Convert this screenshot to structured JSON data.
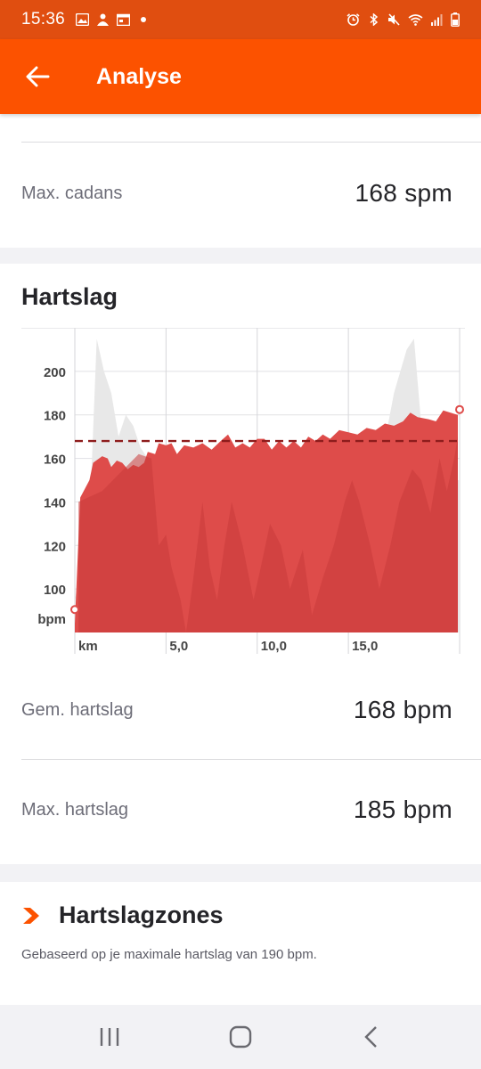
{
  "status_bar": {
    "time": "15:36",
    "left_icons": [
      "image-icon",
      "person-icon",
      "calendar-icon",
      "dot-icon"
    ],
    "right_icons": [
      "alarm-icon",
      "bluetooth-icon",
      "mute-icon",
      "wifi-icon",
      "signal-icon",
      "battery-icon"
    ]
  },
  "app_bar": {
    "title": "Analyse",
    "back_icon": "arrow-left-icon"
  },
  "cadence": {
    "label": "Max. cadans",
    "value": "168 spm"
  },
  "heart_rate": {
    "title": "Hartslag",
    "avg_label": "Gem. hartslag",
    "avg_value": "168 bpm",
    "max_label": "Max. hartslag",
    "max_value": "185 bpm"
  },
  "zones": {
    "title": "Hartslagzones",
    "subtitle": "Gebaseerd op je maximale hartslag van 190 bpm.",
    "icon": "chevron-right-icon"
  },
  "nav_bar": {
    "icons": [
      "recent-apps-icon",
      "home-icon",
      "back-icon"
    ]
  },
  "colors": {
    "accent": "#fc5200",
    "status_bar": "#e04e10",
    "hr_area": "#de4c4a",
    "hr_dark": "#c93a3a",
    "avg_line": "#8e1c1c",
    "grey_area": "#e8e8e8"
  },
  "chart_data": {
    "type": "area",
    "xlabel": "km",
    "ylabel": "bpm",
    "x_ticks": [
      "5,0",
      "10,0",
      "15,0"
    ],
    "x_range": [
      0,
      21.1
    ],
    "y_ticks": [
      100,
      120,
      140,
      160,
      180,
      200
    ],
    "y_range": [
      80,
      220
    ],
    "average": 168,
    "grid": true,
    "series": [
      {
        "values": [
          [
            0,
            84
          ],
          [
            0.3,
            142
          ],
          [
            0.8,
            150
          ],
          [
            1.0,
            158
          ],
          [
            1.5,
            161
          ],
          [
            1.8,
            160
          ],
          [
            2.0,
            156
          ],
          [
            2.3,
            159
          ],
          [
            2.6,
            158
          ],
          [
            2.9,
            155
          ],
          [
            3.2,
            157
          ],
          [
            3.5,
            156
          ],
          [
            3.8,
            158
          ],
          [
            4.0,
            163
          ],
          [
            4.4,
            162
          ],
          [
            4.6,
            167
          ],
          [
            5.0,
            166
          ],
          [
            5.3,
            167
          ],
          [
            5.6,
            162
          ],
          [
            6.0,
            166
          ],
          [
            6.5,
            165
          ],
          [
            7.0,
            167
          ],
          [
            7.5,
            164
          ],
          [
            8.0,
            168
          ],
          [
            8.4,
            171
          ],
          [
            8.8,
            165
          ],
          [
            9.2,
            167
          ],
          [
            9.6,
            165
          ],
          [
            10.0,
            169
          ],
          [
            10.4,
            169
          ],
          [
            10.8,
            164
          ],
          [
            11.2,
            168
          ],
          [
            11.6,
            165
          ],
          [
            12.0,
            168
          ],
          [
            12.4,
            165
          ],
          [
            12.8,
            170
          ],
          [
            13.2,
            168
          ],
          [
            13.6,
            171
          ],
          [
            14.0,
            169
          ],
          [
            14.5,
            173
          ],
          [
            15.0,
            172
          ],
          [
            15.5,
            171
          ],
          [
            16.0,
            174
          ],
          [
            16.5,
            173
          ],
          [
            17.0,
            176
          ],
          [
            17.5,
            175
          ],
          [
            18.0,
            177
          ],
          [
            18.4,
            181
          ],
          [
            18.8,
            179
          ],
          [
            19.4,
            178
          ],
          [
            19.8,
            177
          ],
          [
            20.2,
            182
          ],
          [
            20.6,
            181
          ],
          [
            21.0,
            180
          ]
        ]
      }
    ]
  }
}
